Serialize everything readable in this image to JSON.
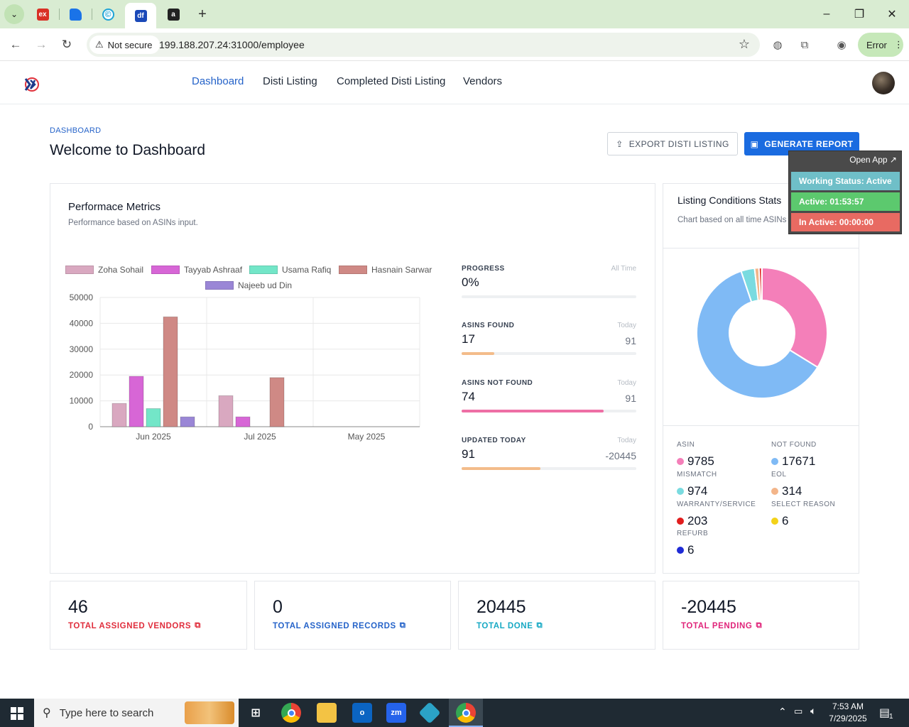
{
  "browser": {
    "tabs": [
      {
        "icon": "excel-ex-icon",
        "label": "ex",
        "color": "#d93025"
      },
      {
        "icon": "app-blue-icon",
        "label": "",
        "color": "#1a73e8"
      },
      {
        "icon": "copyright-c-icon",
        "label": "©",
        "color": "#1fa3d6"
      },
      {
        "icon": "df-icon",
        "label": "df",
        "color": "#1a49b8"
      },
      {
        "icon": "amazon-icon",
        "label": "a",
        "color": "#222222"
      }
    ],
    "security_label": "Not secure",
    "url": "199.188.207.24:31000/employee",
    "profile_error": "Error"
  },
  "app": {
    "nav": [
      "Dashboard",
      "Disti Listing",
      "Completed Disti Listing",
      "Vendors"
    ],
    "breadcrumb": "DASHBOARD",
    "title": "Welcome to Dashboard",
    "export_label": "EXPORT DISTI LISTING",
    "generate_label": "GENERATE REPORT"
  },
  "performance": {
    "title": "Performace Metrics",
    "subtitle": "Performance based on ASINs input."
  },
  "chart_data": {
    "type": "bar",
    "categories": [
      "Jun 2025",
      "Jul 2025",
      "May 2025"
    ],
    "series": [
      {
        "name": "Zoha Sohail",
        "color": "#d9a8c0",
        "values": [
          9000,
          12000,
          0
        ]
      },
      {
        "name": "Tayyab Ashraaf",
        "color": "#d766d6",
        "values": [
          19500,
          3800,
          0
        ]
      },
      {
        "name": "Usama Rafiq",
        "color": "#73e6c8",
        "values": [
          7000,
          0,
          0
        ]
      },
      {
        "name": "Hasnain Sarwar",
        "color": "#cf8985",
        "values": [
          42500,
          19000,
          0
        ]
      },
      {
        "name": "Najeeb ud Din",
        "color": "#9a86d6",
        "values": [
          3800,
          0,
          0
        ]
      }
    ],
    "yticks": [
      "0",
      "10000",
      "20000",
      "30000",
      "40000",
      "50000"
    ],
    "ylim": [
      0,
      50000
    ],
    "grid": true,
    "legend": "top"
  },
  "metrics": [
    {
      "label": "PROGRESS",
      "period": "All Time",
      "value": "0%",
      "right": "",
      "fraction": 0,
      "color": "#e5e7eb"
    },
    {
      "label": "ASINS FOUND",
      "period": "Today",
      "value": "17",
      "right": "91",
      "fraction": 0.186,
      "color": "#f3bc8a"
    },
    {
      "label": "ASINS NOT FOUND",
      "period": "Today",
      "value": "74",
      "right": "91",
      "fraction": 0.813,
      "color": "#ee6fa5"
    },
    {
      "label": "UPDATED TODAY",
      "period": "Today",
      "value": "91",
      "right": "-20445",
      "fraction": 0.45,
      "color": "#f3bc8a"
    }
  ],
  "listing": {
    "title": "Listing Conditions Stats",
    "subtitle": "Chart based on all time ASINs",
    "stats": [
      {
        "key": "asin",
        "label": "ASIN",
        "value": "9785",
        "color": "#f47fb9"
      },
      {
        "key": "notfound",
        "label": "NOT FOUND",
        "value": "17671",
        "color": "#7fbaf5"
      },
      {
        "key": "mismatch",
        "label": "MISMATCH",
        "value": "974",
        "color": "#7adbe0"
      },
      {
        "key": "eol",
        "label": "EOL",
        "value": "314",
        "color": "#f3b58a"
      },
      {
        "key": "warranty",
        "label": "WARRANTY/SERVICE",
        "value": "203",
        "color": "#e11d1d"
      },
      {
        "key": "select",
        "label": "SELECT REASON",
        "value": "6",
        "color": "#f3d21a"
      },
      {
        "key": "refurb",
        "label": "REFURB",
        "value": "6",
        "color": "#1f2bd6"
      }
    ]
  },
  "kpis": [
    {
      "value": "46",
      "label": "TOTAL ASSIGNED VENDORS",
      "color": "#e02d3c"
    },
    {
      "value": "0",
      "label": "TOTAL ASSIGNED RECORDS",
      "color": "#2563c9"
    },
    {
      "value": "20445",
      "label": "TOTAL DONE",
      "color": "#17a9c4"
    },
    {
      "value": "-20445",
      "label": "TOTAL PENDING",
      "color": "#e0247a"
    }
  ],
  "widget": {
    "open": "Open App ↗",
    "status": "Working Status: Active",
    "active": "Active: 01:53:57",
    "inactive": "In Active: 00:00:00"
  },
  "taskbar": {
    "search_placeholder": "Type here to search",
    "time": "7:53 AM",
    "date": "7/29/2025",
    "notifications": "1"
  }
}
